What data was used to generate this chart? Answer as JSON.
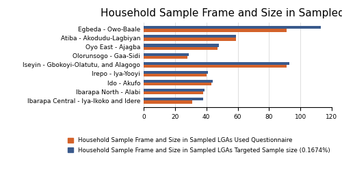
{
  "title": "Household Sample Frame and Size in Sampled LGAs",
  "categories": [
    "Egbeda - Owo-Baale",
    "Atiba - Akodudu-Lagbiyan",
    "Oyo East - Ajagba",
    "Olorunsogo - Gaa-Sidi",
    "Iseyin - Gbokoyi-Olatutu, and Alagogo",
    "Irepo - Iya-Yooyi",
    "Ido - Akufo",
    "Ibarapa North - Alabi",
    "Ibarapa Central - Iya-Ikoko and Idere"
  ],
  "used_questionnaire": [
    91,
    59,
    47,
    28,
    91,
    40,
    43,
    38,
    31
  ],
  "targeted_sample": [
    113,
    59,
    48,
    29,
    93,
    41,
    44,
    39,
    38
  ],
  "color_orange": "#D4622A",
  "color_blue": "#3A5A8C",
  "legend_label_orange": "Household Sample Frame and Size in Sampled LGAs Used Questionnaire",
  "legend_label_blue": "Household Sample Frame and Size in Sampled LGAs Targeted Sample size (0.1674%)",
  "xlim": [
    0,
    120
  ],
  "xticks": [
    0,
    20,
    40,
    60,
    80,
    100,
    120
  ],
  "background_color": "#ffffff",
  "title_fontsize": 11,
  "tick_fontsize": 6.5,
  "legend_fontsize": 6.2,
  "bar_height": 0.32
}
